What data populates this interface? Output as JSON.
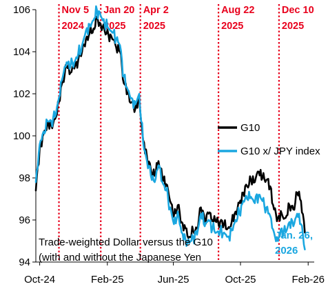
{
  "chart_data": {
    "type": "line",
    "title": "",
    "xlabel": "",
    "ylabel": "",
    "ylim": [
      94,
      106
    ],
    "y_ticks": [
      "94",
      "96",
      "98",
      "100",
      "102",
      "104",
      "106"
    ],
    "x_range": [
      "2024-09-24",
      "2026-02-12"
    ],
    "x_ticks": [
      {
        "label": "Oct-24",
        "date": "2024-10-01"
      },
      {
        "label": "Feb-25",
        "date": "2025-02-01"
      },
      {
        "label": "Jun-25",
        "date": "2025-06-01"
      },
      {
        "label": "Oct-25",
        "date": "2025-10-01"
      },
      {
        "label": "Feb-26",
        "date": "2026-02-01"
      }
    ],
    "grid": false,
    "legend_position": "right",
    "events": [
      {
        "date": "2024-11-05",
        "line1": "Nov 5",
        "line2": "2024"
      },
      {
        "date": "2025-01-20",
        "line1": "Jan 20",
        "line2": "2025"
      },
      {
        "date": "2025-04-02",
        "line1": "Apr 2",
        "line2": "2025"
      },
      {
        "date": "2025-08-22",
        "line1": "Aug 22",
        "line2": "2025"
      },
      {
        "date": "2025-12-10",
        "line1": "Dec 10",
        "line2": "2025"
      }
    ],
    "annotation": [
      "Trade-weighted Dollar versus the G10",
      "(with and without the Japanese Yen"
    ],
    "end_label": [
      "Jan. 26,",
      "2026"
    ],
    "colors": {
      "g10": "#000000",
      "g10_ex_jpy": "#1aa7e0",
      "event": "#e8001c"
    },
    "series": [
      {
        "name": "G10",
        "x": [
          "2024-09-24",
          "2024-10-01",
          "2024-10-08",
          "2024-10-15",
          "2024-10-22",
          "2024-10-29",
          "2024-11-05",
          "2024-11-12",
          "2024-11-19",
          "2024-11-26",
          "2024-12-03",
          "2024-12-10",
          "2024-12-17",
          "2024-12-24",
          "2024-12-31",
          "2025-01-07",
          "2025-01-13",
          "2025-01-20",
          "2025-01-27",
          "2025-02-03",
          "2025-02-10",
          "2025-02-17",
          "2025-02-24",
          "2025-03-03",
          "2025-03-10",
          "2025-03-17",
          "2025-03-24",
          "2025-03-31",
          "2025-04-07",
          "2025-04-14",
          "2025-04-21",
          "2025-04-28",
          "2025-05-05",
          "2025-05-12",
          "2025-05-19",
          "2025-05-26",
          "2025-06-02",
          "2025-06-09",
          "2025-06-16",
          "2025-06-23",
          "2025-06-30",
          "2025-07-07",
          "2025-07-14",
          "2025-07-21",
          "2025-07-28",
          "2025-08-04",
          "2025-08-11",
          "2025-08-18",
          "2025-08-25",
          "2025-09-01",
          "2025-09-08",
          "2025-09-15",
          "2025-09-22",
          "2025-09-29",
          "2025-10-06",
          "2025-10-13",
          "2025-10-20",
          "2025-10-27",
          "2025-11-03",
          "2025-11-10",
          "2025-11-17",
          "2025-11-24",
          "2025-12-01",
          "2025-12-08",
          "2025-12-15",
          "2025-12-22",
          "2025-12-29",
          "2026-01-05",
          "2026-01-12",
          "2026-01-19",
          "2026-01-26"
        ],
        "values": [
          97.4,
          99.4,
          100.1,
          100.6,
          100.5,
          100.8,
          101.6,
          102.6,
          103.3,
          103.0,
          103.2,
          103.6,
          104.0,
          104.6,
          104.9,
          105.1,
          105.6,
          105.3,
          105.0,
          104.8,
          104.6,
          104.2,
          104.0,
          102.5,
          102.0,
          101.6,
          101.3,
          101.8,
          99.8,
          99.0,
          98.4,
          98.1,
          98.8,
          98.0,
          97.7,
          96.9,
          96.2,
          96.7,
          95.9,
          95.6,
          95.2,
          95.5,
          95.6,
          96.6,
          96.0,
          96.3,
          96.0,
          95.9,
          95.9,
          95.8,
          95.6,
          95.9,
          96.4,
          96.8,
          97.3,
          97.6,
          97.9,
          97.8,
          98.3,
          98.0,
          97.9,
          97.6,
          96.5,
          96.1,
          96.3,
          96.1,
          96.7,
          96.5,
          97.3,
          96.9,
          95.4
        ]
      },
      {
        "name": "G10 x/ JPY index",
        "x": [
          "2024-09-24",
          "2024-10-01",
          "2024-10-08",
          "2024-10-15",
          "2024-10-22",
          "2024-10-29",
          "2024-11-05",
          "2024-11-12",
          "2024-11-19",
          "2024-11-26",
          "2024-12-03",
          "2024-12-10",
          "2024-12-17",
          "2024-12-24",
          "2024-12-31",
          "2025-01-07",
          "2025-01-13",
          "2025-01-20",
          "2025-01-27",
          "2025-02-03",
          "2025-02-10",
          "2025-02-17",
          "2025-02-24",
          "2025-03-03",
          "2025-03-10",
          "2025-03-17",
          "2025-03-24",
          "2025-03-31",
          "2025-04-07",
          "2025-04-14",
          "2025-04-21",
          "2025-04-28",
          "2025-05-05",
          "2025-05-12",
          "2025-05-19",
          "2025-05-26",
          "2025-06-02",
          "2025-06-09",
          "2025-06-16",
          "2025-06-23",
          "2025-06-30",
          "2025-07-07",
          "2025-07-14",
          "2025-07-21",
          "2025-07-28",
          "2025-08-04",
          "2025-08-11",
          "2025-08-18",
          "2025-08-25",
          "2025-09-01",
          "2025-09-08",
          "2025-09-15",
          "2025-09-22",
          "2025-09-29",
          "2025-10-06",
          "2025-10-13",
          "2025-10-20",
          "2025-10-27",
          "2025-11-03",
          "2025-11-10",
          "2025-11-17",
          "2025-11-24",
          "2025-12-01",
          "2025-12-08",
          "2025-12-15",
          "2025-12-22",
          "2025-12-29",
          "2026-01-05",
          "2026-01-12",
          "2026-01-19",
          "2026-01-26"
        ],
        "values": [
          97.8,
          99.6,
          100.2,
          100.7,
          100.7,
          100.9,
          101.8,
          102.8,
          103.5,
          103.3,
          103.5,
          103.9,
          104.3,
          105.0,
          105.3,
          105.5,
          106.0,
          105.7,
          105.3,
          105.1,
          104.9,
          104.6,
          104.3,
          102.8,
          102.2,
          101.8,
          101.5,
          102.0,
          99.7,
          98.8,
          98.1,
          97.8,
          98.6,
          97.8,
          97.4,
          96.6,
          95.8,
          96.4,
          95.4,
          95.1,
          94.9,
          95.2,
          95.3,
          96.3,
          95.7,
          96.0,
          95.6,
          95.4,
          95.5,
          95.4,
          95.2,
          95.5,
          96.0,
          96.3,
          96.9,
          97.0,
          97.1,
          96.8,
          97.2,
          96.9,
          96.6,
          96.2,
          95.4,
          95.0,
          95.6,
          95.4,
          95.9,
          95.7,
          96.3,
          95.8,
          94.6
        ]
      }
    ]
  }
}
